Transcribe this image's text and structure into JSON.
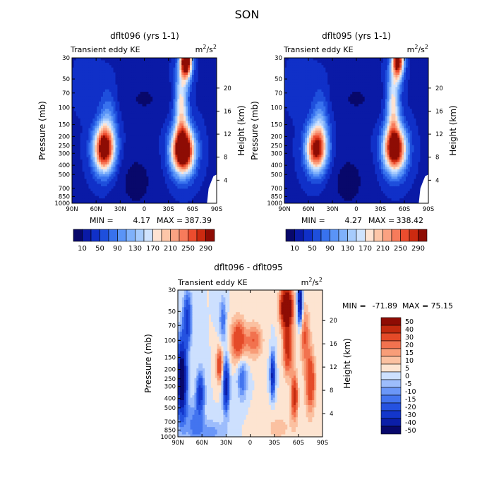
{
  "page_title": "SON",
  "colors": {
    "scale": [
      "#08086b",
      "#0a1aa6",
      "#1030c8",
      "#1e4fdc",
      "#3872ee",
      "#5a94f7",
      "#7fb1fb",
      "#a6cbfd",
      "#cfe3fe",
      "#ffe3d2",
      "#fdc6a8",
      "#fba282",
      "#f77b5b",
      "#ec4c2e",
      "#cc2a10",
      "#8e0c04"
    ],
    "diff_scale": [
      "#08086b",
      "#0b1ea8",
      "#1336cb",
      "#2552e0",
      "#4374ef",
      "#6b97f8",
      "#9dbdfc",
      "#cde0fe",
      "#fde4d1",
      "#fbc1a1",
      "#f89d78",
      "#f2724f",
      "#e44a28",
      "#c22a0f",
      "#8e0c04"
    ]
  },
  "chart_data": [
    {
      "type": "heatmap",
      "title": "dflt096 (yrs 1-1)",
      "subtitle_left": "Transient eddy KE",
      "units_base": "m",
      "units_exp1": "2",
      "units_sep": "/s",
      "units_exp2": "2",
      "ylabel": "Pressure (mb)",
      "ylabel2": "Height (km)",
      "x_ticks": [
        "90N",
        "60N",
        "30N",
        "0",
        "30S",
        "60S",
        "90S"
      ],
      "x_values": [
        90,
        60,
        30,
        0,
        -30,
        -60,
        -90
      ],
      "y_ticks": [
        "30",
        "50",
        "70",
        "100",
        "150",
        "200",
        "250",
        "300",
        "400",
        "500",
        "700",
        "850",
        "1000"
      ],
      "y_values": [
        30,
        50,
        70,
        100,
        150,
        200,
        250,
        300,
        400,
        500,
        700,
        850,
        1000
      ],
      "ylim": [
        30,
        1000
      ],
      "height_ticks": [
        "4",
        "8",
        "12",
        "16",
        "20"
      ],
      "height_values": [
        4,
        8,
        12,
        16,
        20
      ],
      "min_label": "MIN =",
      "min_value": "4.17",
      "max_label": "MAX =",
      "max_value": "387.39",
      "colorbar_labels": [
        "10",
        "50",
        "90",
        "130",
        "170",
        "210",
        "250",
        "290"
      ],
      "contour_levels": [
        10,
        30,
        50,
        70,
        90,
        110,
        130,
        150,
        170,
        190,
        210,
        230,
        250,
        270,
        290
      ],
      "features": [
        {
          "lat": 50,
          "p": 270,
          "peak": 330
        },
        {
          "lat": -48,
          "p": 280,
          "peak": 387
        },
        {
          "lat": -52,
          "p": 32,
          "peak": 380
        }
      ]
    },
    {
      "type": "heatmap",
      "title": "dflt095 (yrs 1-1)",
      "subtitle_left": "Transient eddy KE",
      "units_base": "m",
      "units_exp1": "2",
      "units_sep": "/s",
      "units_exp2": "2",
      "ylabel": "Pressure (mb)",
      "ylabel2": "Height (km)",
      "x_ticks": [
        "90N",
        "60N",
        "30N",
        "0",
        "30S",
        "60S",
        "90S"
      ],
      "x_values": [
        90,
        60,
        30,
        0,
        -30,
        -60,
        -90
      ],
      "y_ticks": [
        "30",
        "50",
        "70",
        "100",
        "150",
        "200",
        "250",
        "300",
        "400",
        "500",
        "700",
        "850",
        "1000"
      ],
      "y_values": [
        30,
        50,
        70,
        100,
        150,
        200,
        250,
        300,
        400,
        500,
        700,
        850,
        1000
      ],
      "ylim": [
        30,
        1000
      ],
      "height_ticks": [
        "4",
        "8",
        "12",
        "16",
        "20"
      ],
      "height_values": [
        4,
        8,
        12,
        16,
        20
      ],
      "min_label": "MIN =",
      "min_value": "4.27",
      "max_label": "MAX =",
      "max_value": "338.42",
      "colorbar_labels": [
        "10",
        "50",
        "90",
        "130",
        "170",
        "210",
        "250",
        "290"
      ],
      "contour_levels": [
        10,
        30,
        50,
        70,
        90,
        110,
        130,
        150,
        170,
        190,
        210,
        230,
        250,
        270,
        290
      ],
      "features": [
        {
          "lat": 50,
          "p": 270,
          "peak": 300
        },
        {
          "lat": -48,
          "p": 270,
          "peak": 338
        },
        {
          "lat": -52,
          "p": 32,
          "peak": 330
        }
      ]
    },
    {
      "type": "heatmap",
      "title": "dflt096 - dflt095",
      "subtitle_left": "Transient eddy KE",
      "units_base": "m",
      "units_exp1": "2",
      "units_sep": "/s",
      "units_exp2": "2",
      "ylabel": "Pressure (mb)",
      "ylabel2": "Height (km)",
      "x_ticks": [
        "90N",
        "60N",
        "30N",
        "0",
        "30S",
        "60S",
        "90S"
      ],
      "x_values": [
        90,
        60,
        30,
        0,
        -30,
        -60,
        -90
      ],
      "y_ticks": [
        "30",
        "50",
        "70",
        "100",
        "150",
        "200",
        "250",
        "300",
        "400",
        "500",
        "700",
        "850",
        "1000"
      ],
      "y_values": [
        30,
        50,
        70,
        100,
        150,
        200,
        250,
        300,
        400,
        500,
        700,
        850,
        1000
      ],
      "ylim": [
        30,
        1000
      ],
      "height_ticks": [
        "4",
        "8",
        "12",
        "16",
        "20"
      ],
      "height_values": [
        4,
        8,
        12,
        16,
        20
      ],
      "min_label": "MIN =",
      "min_value": "-71.89",
      "max_label": "MAX =",
      "max_value": "75.15",
      "colorbar_labels": [
        "50",
        "40",
        "30",
        "20",
        "15",
        "10",
        "5",
        "0",
        "-5",
        "-10",
        "-15",
        "-20",
        "-30",
        "-40",
        "-50"
      ],
      "contour_levels": [
        -50,
        -40,
        -30,
        -20,
        -15,
        -10,
        -5,
        0,
        5,
        10,
        15,
        20,
        30,
        40,
        50
      ]
    }
  ]
}
